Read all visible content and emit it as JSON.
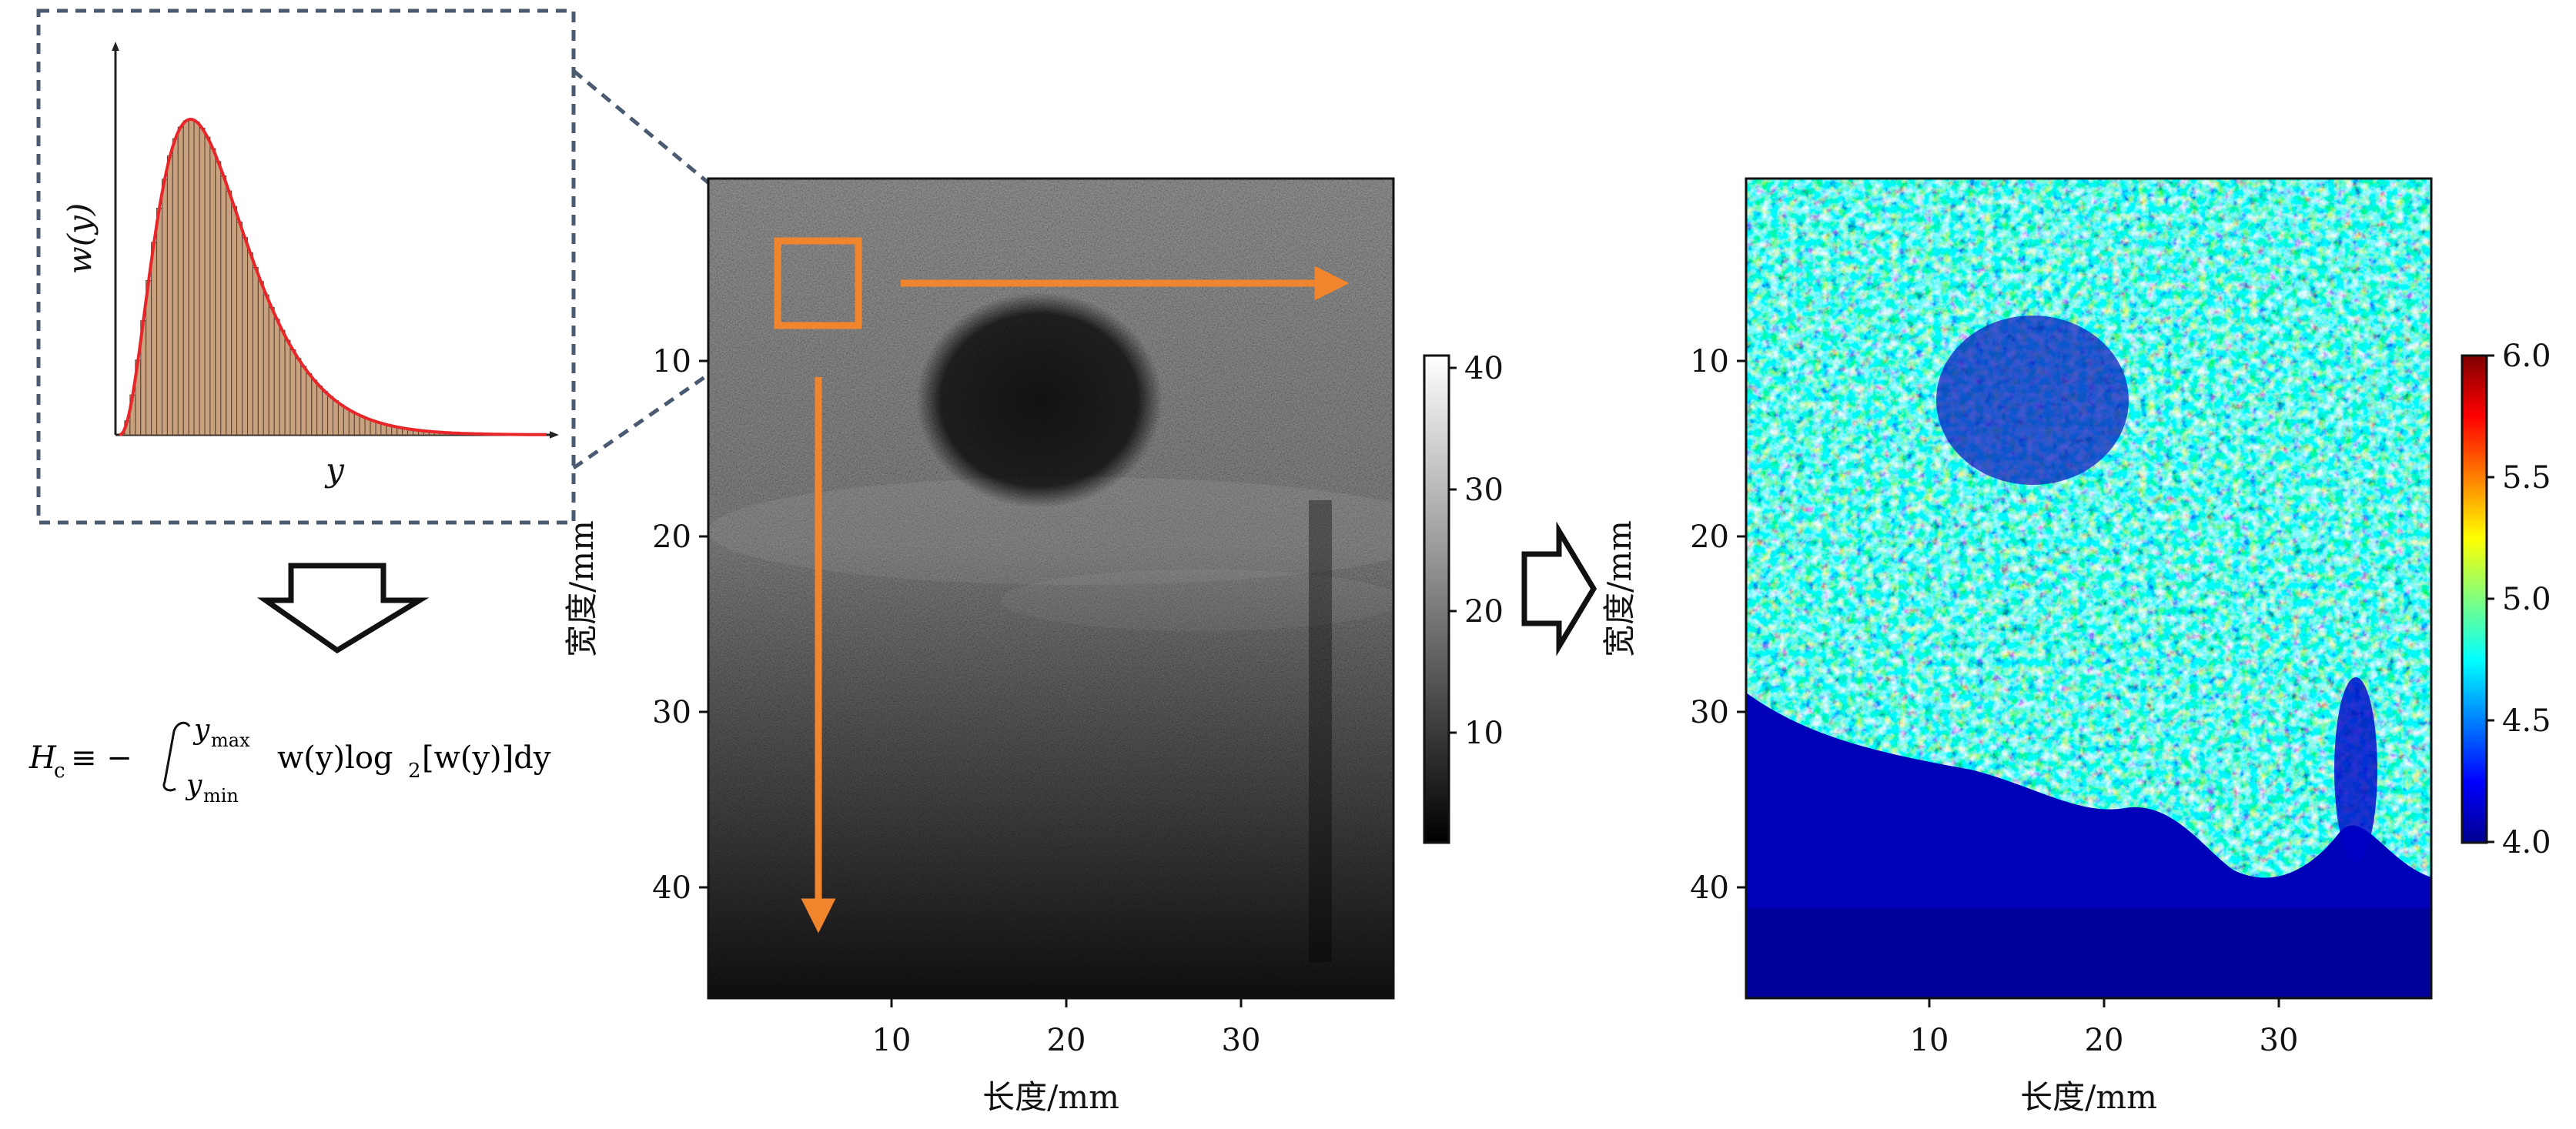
{
  "inset": {
    "y_axis_label": "w(y)",
    "x_axis_label": "y",
    "curve_color": "#e8262a",
    "bar_color": "#c8a27e"
  },
  "formula": {
    "lhs": "H",
    "lhs_sub": "c",
    "op": "≡ −",
    "upper": "y",
    "upper_sub": "max",
    "lower": "y",
    "lower_sub": "min",
    "integrand_pre": "w(y)log",
    "log_base": "2",
    "integrand_post": "[w(y)]dy"
  },
  "bmode": {
    "y_ticks": [
      "10",
      "20",
      "30",
      "40"
    ],
    "x_ticks": [
      "10",
      "20",
      "30"
    ],
    "y_label": "宽度/mm",
    "x_label": "长度/mm",
    "colorbar_ticks": [
      "40",
      "30",
      "20",
      "10"
    ],
    "arrow_color": "#f0852d"
  },
  "entropy_map": {
    "y_ticks": [
      "10",
      "20",
      "30",
      "40"
    ],
    "x_ticks": [
      "10",
      "20",
      "30"
    ],
    "y_label": "宽度/mm",
    "x_label": "长度/mm",
    "colorbar_ticks": [
      "6.0",
      "5.5",
      "5.0",
      "4.5",
      "4.0"
    ]
  }
}
